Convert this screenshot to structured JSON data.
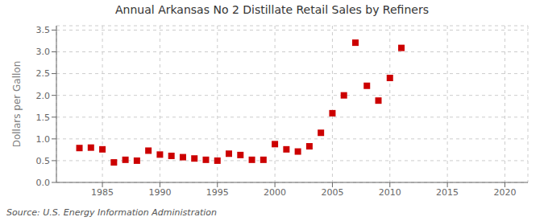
{
  "chart_data": {
    "type": "scatter",
    "title": "Annual Arkansas No 2 Distillate Retail Sales by Refiners",
    "y_label": "Dollars per Gallon",
    "annotation": "Source: U.S. Energy Information Administration",
    "x": [
      1983,
      1984,
      1985,
      1986,
      1987,
      1988,
      1989,
      1990,
      1991,
      1992,
      1993,
      1994,
      1995,
      1996,
      1997,
      1998,
      1999,
      2000,
      2001,
      2002,
      2003,
      2004,
      2005,
      2006,
      2007,
      2008,
      2009,
      2010,
      2011
    ],
    "values": [
      0.79,
      0.8,
      0.76,
      0.46,
      0.52,
      0.5,
      0.73,
      0.64,
      0.61,
      0.58,
      0.55,
      0.52,
      0.5,
      0.66,
      0.63,
      0.52,
      0.52,
      0.88,
      0.76,
      0.71,
      0.83,
      1.14,
      1.59,
      2.0,
      3.21,
      2.22,
      1.88,
      2.4,
      3.09
    ],
    "color": "#cc0000",
    "marker": "square",
    "xlim": [
      1981,
      2022
    ],
    "ylim": [
      0.0,
      3.6
    ],
    "xticks": [
      1985,
      1990,
      1995,
      2000,
      2005,
      2010,
      2015,
      2020
    ],
    "yticks": [
      {
        "value": 0.0,
        "label": "0.0"
      },
      0.5,
      {
        "value": 1.0,
        "label": "1.0"
      },
      1.5,
      {
        "value": 2.0,
        "label": "2.0"
      },
      2.5,
      {
        "value": 3.0,
        "label": "3.0"
      },
      3.5
    ],
    "grid": true
  }
}
